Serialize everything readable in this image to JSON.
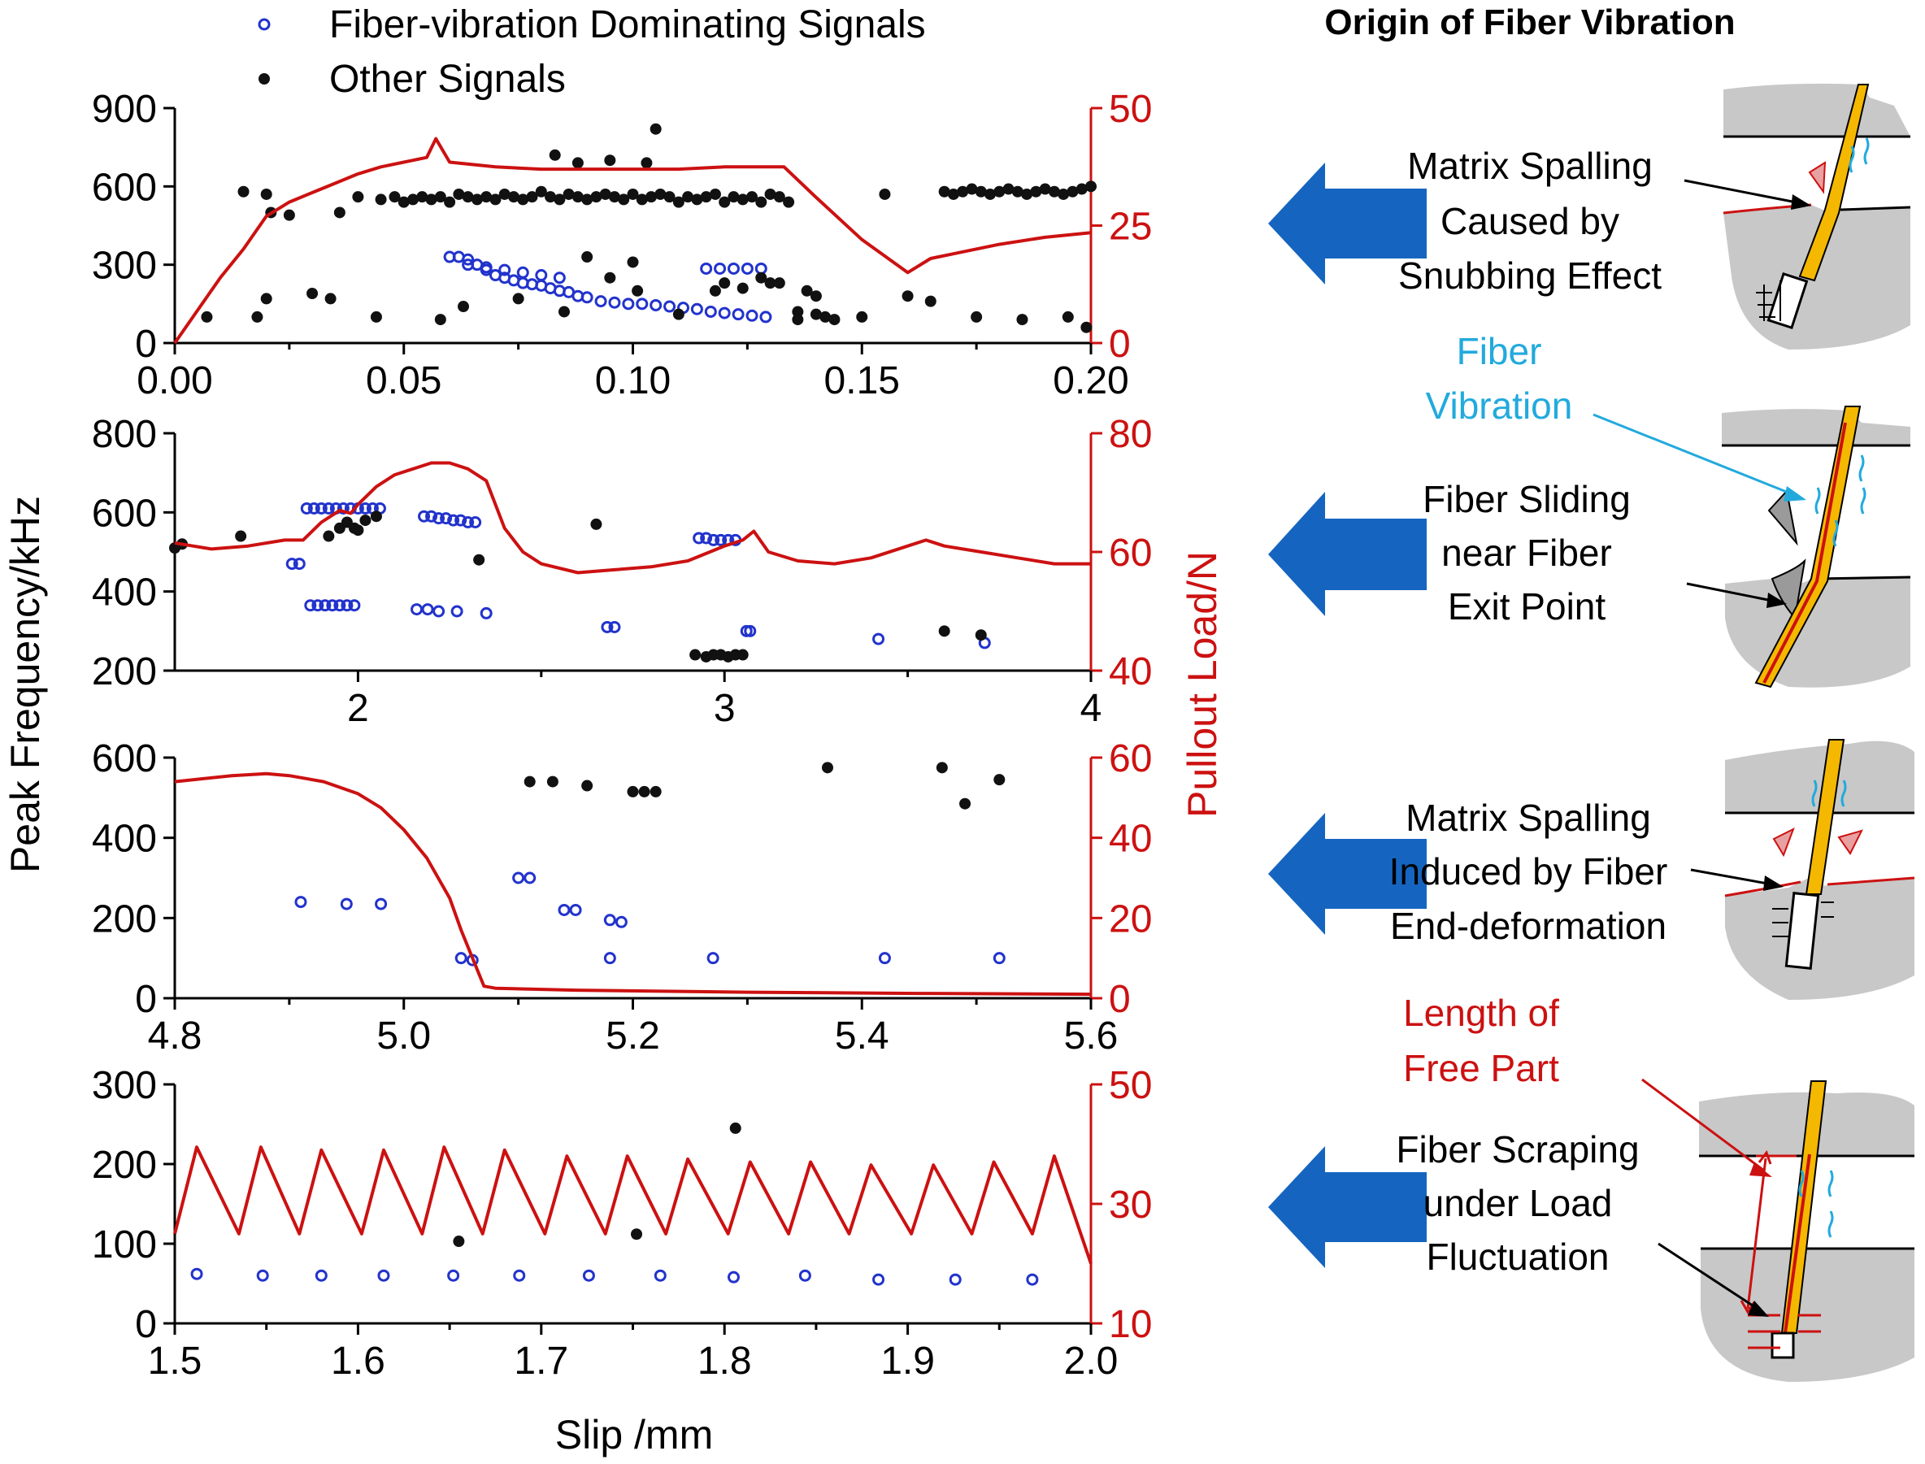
{
  "legend": {
    "fiber_vibration": "Fiber-vibration Dominating Signals",
    "other": "Other Signals"
  },
  "axes": {
    "y_left_label": "Peak Frequency/kHz",
    "y_right_label": "Pullout Load/N",
    "x_label": "Slip /mm"
  },
  "colors": {
    "fiber": "#2233cc",
    "other": "#111111",
    "load": "#cc1111",
    "arrow": "#1565c0"
  },
  "chart_data": [
    {
      "type": "scatter",
      "panel": "a",
      "xlim": [
        0,
        0.2
      ],
      "xticks": [
        "0.00",
        "0.05",
        "0.10",
        "0.15",
        "0.20"
      ],
      "xtick_values": [
        0,
        0.05,
        0.1,
        0.15,
        0.2
      ],
      "ylim": [
        0,
        900
      ],
      "yticks": [
        "0",
        "300",
        "600",
        "900"
      ],
      "ytick_values": [
        0,
        300,
        600,
        900
      ],
      "y2lim": [
        0,
        50
      ],
      "y2ticks": [
        "0",
        "25",
        "50"
      ],
      "y2tick_values": [
        0,
        25,
        50
      ],
      "series": [
        {
          "name": "Fiber-vibration Dominating Signals",
          "style": "open",
          "x": [
            0.06,
            0.062,
            0.064,
            0.066,
            0.068,
            0.07,
            0.072,
            0.074,
            0.076,
            0.078,
            0.08,
            0.082,
            0.084,
            0.086,
            0.088,
            0.09,
            0.093,
            0.096,
            0.099,
            0.102,
            0.105,
            0.108,
            0.111,
            0.114,
            0.117,
            0.12,
            0.123,
            0.126,
            0.129,
            0.116,
            0.119,
            0.122,
            0.125,
            0.128,
            0.064,
            0.068,
            0.072,
            0.076,
            0.08,
            0.084
          ],
          "y": [
            330,
            330,
            320,
            300,
            280,
            260,
            250,
            240,
            230,
            225,
            220,
            210,
            200,
            195,
            180,
            175,
            160,
            155,
            150,
            150,
            145,
            140,
            135,
            130,
            120,
            115,
            110,
            105,
            100,
            285,
            285,
            285,
            285,
            285,
            300,
            290,
            280,
            270,
            260,
            250
          ]
        },
        {
          "name": "Other Signals",
          "style": "filled",
          "x": [
            0.007,
            0.015,
            0.018,
            0.02,
            0.021,
            0.025,
            0.034,
            0.036,
            0.04,
            0.044,
            0.045,
            0.048,
            0.05,
            0.052,
            0.054,
            0.056,
            0.058,
            0.06,
            0.062,
            0.064,
            0.066,
            0.068,
            0.07,
            0.072,
            0.074,
            0.076,
            0.078,
            0.08,
            0.082,
            0.084,
            0.086,
            0.088,
            0.09,
            0.092,
            0.094,
            0.096,
            0.098,
            0.1,
            0.102,
            0.104,
            0.106,
            0.108,
            0.11,
            0.112,
            0.114,
            0.116,
            0.118,
            0.12,
            0.122,
            0.124,
            0.126,
            0.128,
            0.13,
            0.132,
            0.134,
            0.136,
            0.138,
            0.14,
            0.142,
            0.083,
            0.088,
            0.095,
            0.103,
            0.095,
            0.1,
            0.09,
            0.105,
            0.12,
            0.13,
            0.118,
            0.124,
            0.128,
            0.132,
            0.136,
            0.14,
            0.144,
            0.15,
            0.155,
            0.16,
            0.165,
            0.168,
            0.17,
            0.172,
            0.174,
            0.176,
            0.178,
            0.18,
            0.182,
            0.184,
            0.186,
            0.188,
            0.19,
            0.192,
            0.194,
            0.196,
            0.198,
            0.2,
            0.02,
            0.03,
            0.058,
            0.063,
            0.075,
            0.085,
            0.101,
            0.11,
            0.175,
            0.185,
            0.195,
            0.199
          ],
          "y": [
            100,
            580,
            100,
            570,
            500,
            490,
            170,
            500,
            560,
            100,
            550,
            560,
            540,
            550,
            560,
            550,
            560,
            540,
            570,
            560,
            550,
            560,
            550,
            570,
            560,
            550,
            560,
            580,
            560,
            550,
            570,
            560,
            550,
            560,
            570,
            560,
            550,
            570,
            550,
            560,
            570,
            560,
            540,
            560,
            550,
            560,
            570,
            540,
            560,
            550,
            560,
            540,
            570,
            560,
            540,
            120,
            200,
            180,
            100,
            720,
            690,
            700,
            690,
            250,
            310,
            330,
            820,
            230,
            230,
            200,
            210,
            250,
            230,
            90,
            110,
            90,
            100,
            570,
            180,
            160,
            580,
            570,
            580,
            590,
            580,
            570,
            580,
            590,
            580,
            570,
            580,
            590,
            580,
            570,
            580,
            590,
            600,
            170,
            190,
            90,
            140,
            170,
            120,
            200,
            110,
            100,
            90,
            100,
            60
          ]
        },
        {
          "name": "Pullout Load",
          "axis": "right",
          "style": "line",
          "x": [
            0,
            0.005,
            0.01,
            0.015,
            0.02,
            0.025,
            0.03,
            0.035,
            0.04,
            0.045,
            0.05,
            0.055,
            0.057,
            0.06,
            0.065,
            0.07,
            0.08,
            0.09,
            0.1,
            0.11,
            0.12,
            0.13,
            0.133,
            0.14,
            0.15,
            0.16,
            0.165,
            0.17,
            0.18,
            0.19,
            0.2
          ],
          "y": [
            0,
            7,
            14,
            20,
            27,
            30,
            32,
            34,
            36,
            37.5,
            38.5,
            39.5,
            43.5,
            38.5,
            38,
            37.5,
            37,
            37,
            37,
            37,
            37.5,
            37.5,
            37.5,
            31,
            22,
            15,
            18,
            19,
            21,
            22.5,
            23.5
          ]
        }
      ]
    },
    {
      "type": "scatter",
      "panel": "b",
      "xlim": [
        1.5,
        4
      ],
      "xticks": [
        "2",
        "3",
        "4"
      ],
      "xtick_values": [
        2,
        3,
        4
      ],
      "ylim": [
        200,
        800
      ],
      "yticks": [
        "200",
        "400",
        "600",
        "800"
      ],
      "ytick_values": [
        200,
        400,
        600,
        800
      ],
      "y2lim": [
        40,
        80
      ],
      "y2ticks": [
        "40",
        "60",
        "80"
      ],
      "y2tick_values": [
        40,
        60,
        80
      ],
      "series": [
        {
          "name": "Fiber-vibration Dominating Signals",
          "style": "open",
          "x": [
            1.82,
            1.84,
            1.86,
            1.88,
            1.9,
            1.92,
            1.94,
            1.96,
            1.98,
            2.0,
            2.02,
            2.04,
            2.06,
            1.87,
            1.89,
            1.91,
            1.93,
            1.95,
            1.97,
            1.99,
            2.18,
            2.2,
            2.22,
            2.24,
            2.26,
            2.28,
            2.3,
            2.32,
            2.16,
            2.19,
            2.22,
            2.27,
            2.35,
            2.68,
            2.7,
            2.93,
            2.95,
            2.97,
            2.99,
            3.01,
            3.03,
            3.06,
            3.07,
            3.42,
            3.71
          ],
          "y": [
            470,
            470,
            610,
            610,
            610,
            610,
            610,
            610,
            610,
            610,
            610,
            610,
            610,
            365,
            365,
            365,
            365,
            365,
            365,
            365,
            590,
            590,
            585,
            585,
            580,
            580,
            575,
            575,
            355,
            355,
            350,
            350,
            345,
            310,
            310,
            535,
            535,
            530,
            530,
            530,
            530,
            300,
            300,
            280,
            270
          ]
        },
        {
          "name": "Other Signals",
          "style": "filled",
          "x": [
            1.5,
            1.52,
            1.68,
            1.92,
            1.95,
            1.97,
            1.99,
            2.0,
            2.02,
            2.05,
            2.65,
            2.33,
            2.92,
            2.95,
            2.97,
            2.99,
            3.01,
            3.03,
            3.05,
            3.6,
            3.7
          ],
          "y": [
            510,
            520,
            540,
            540,
            560,
            575,
            560,
            555,
            580,
            590,
            570,
            480,
            240,
            235,
            240,
            240,
            235,
            240,
            240,
            300,
            290
          ]
        },
        {
          "name": "Pullout Load",
          "axis": "right",
          "style": "line",
          "x": [
            1.5,
            1.55,
            1.6,
            1.7,
            1.8,
            1.85,
            1.9,
            1.95,
            1.98,
            2.0,
            2.05,
            2.1,
            2.15,
            2.2,
            2.25,
            2.3,
            2.35,
            2.4,
            2.45,
            2.5,
            2.6,
            2.7,
            2.8,
            2.9,
            3.0,
            3.05,
            3.08,
            3.12,
            3.2,
            3.3,
            3.4,
            3.5,
            3.55,
            3.6,
            3.7,
            3.8,
            3.9,
            4.0
          ],
          "y": [
            61.5,
            61,
            60.5,
            61,
            62,
            62,
            65,
            67,
            66.5,
            68,
            71,
            73,
            74,
            75,
            75,
            74,
            72,
            64,
            60,
            58,
            56.5,
            57,
            57.5,
            58.5,
            61,
            62,
            63.5,
            60,
            58.5,
            58,
            59,
            61,
            62,
            61,
            60,
            59,
            58,
            58
          ]
        }
      ]
    },
    {
      "type": "scatter",
      "panel": "c",
      "xlim": [
        4.8,
        5.6
      ],
      "xticks": [
        "4.8",
        "5.0",
        "5.2",
        "5.4",
        "5.6"
      ],
      "xtick_values": [
        4.8,
        5.0,
        5.2,
        5.4,
        5.6
      ],
      "ylim": [
        0,
        600
      ],
      "yticks": [
        "0",
        "200",
        "400",
        "600"
      ],
      "ytick_values": [
        0,
        200,
        400,
        600
      ],
      "y2lim": [
        0,
        60
      ],
      "y2ticks": [
        "0",
        "20",
        "40",
        "60"
      ],
      "y2tick_values": [
        0,
        20,
        40,
        60
      ],
      "series": [
        {
          "name": "Fiber-vibration Dominating Signals",
          "style": "open",
          "x": [
            4.91,
            4.95,
            4.98,
            5.05,
            5.06,
            5.1,
            5.11,
            5.14,
            5.15,
            5.18,
            5.19,
            5.18,
            5.27,
            5.42,
            5.52
          ],
          "y": [
            240,
            235,
            235,
            100,
            95,
            300,
            300,
            220,
            220,
            195,
            190,
            100,
            100,
            100,
            100
          ]
        },
        {
          "name": "Other Signals",
          "style": "filled",
          "x": [
            5.11,
            5.13,
            5.16,
            5.2,
            5.21,
            5.22,
            5.37,
            5.47,
            5.49,
            5.52
          ],
          "y": [
            540,
            540,
            530,
            515,
            515,
            515,
            575,
            575,
            485,
            545
          ]
        },
        {
          "name": "Pullout Load",
          "axis": "right",
          "style": "line",
          "x": [
            4.8,
            4.85,
            4.88,
            4.9,
            4.93,
            4.96,
            4.98,
            5.0,
            5.02,
            5.04,
            5.05,
            5.06,
            5.07,
            5.08,
            5.15,
            5.3,
            5.45,
            5.6
          ],
          "y": [
            54,
            55.5,
            56,
            55.5,
            54,
            51,
            47.5,
            42,
            35,
            25,
            17,
            10,
            3,
            2.5,
            2,
            1.5,
            1.2,
            1
          ]
        }
      ]
    },
    {
      "type": "scatter",
      "panel": "d",
      "xlim": [
        1.5,
        2.0
      ],
      "xticks": [
        "1.5",
        "1.6",
        "1.7",
        "1.8",
        "1.9",
        "2.0"
      ],
      "xtick_values": [
        1.5,
        1.6,
        1.7,
        1.8,
        1.9,
        2.0
      ],
      "ylim": [
        0,
        300
      ],
      "yticks": [
        "0",
        "100",
        "200",
        "300"
      ],
      "ytick_values": [
        0,
        100,
        200,
        300
      ],
      "y2lim": [
        10,
        50
      ],
      "y2ticks": [
        "10",
        "30",
        "50"
      ],
      "y2tick_values": [
        10,
        30,
        50
      ],
      "series": [
        {
          "name": "Fiber-vibration Dominating Signals",
          "style": "open",
          "x": [
            1.512,
            1.548,
            1.58,
            1.614,
            1.652,
            1.688,
            1.726,
            1.765,
            1.805,
            1.844,
            1.884,
            1.926,
            1.968
          ],
          "y": [
            62,
            60,
            60,
            60,
            60,
            60,
            60,
            60,
            58,
            60,
            55,
            55,
            55
          ]
        },
        {
          "name": "Other Signals",
          "style": "filled",
          "x": [
            1.655,
            1.752,
            1.806
          ],
          "y": [
            103,
            112,
            245
          ]
        },
        {
          "name": "Pullout Load",
          "axis": "right",
          "style": "line",
          "x": [
            1.5,
            1.512,
            1.535,
            1.547,
            1.568,
            1.58,
            1.602,
            1.614,
            1.635,
            1.647,
            1.668,
            1.68,
            1.702,
            1.714,
            1.735,
            1.747,
            1.768,
            1.78,
            1.802,
            1.814,
            1.835,
            1.847,
            1.868,
            1.88,
            1.902,
            1.914,
            1.935,
            1.947,
            1.968,
            1.98,
            2.0
          ],
          "y": [
            25,
            39.5,
            25,
            39.5,
            25,
            39,
            25,
            39,
            25,
            39.5,
            25,
            39,
            25,
            38,
            25,
            38,
            25,
            37.5,
            25,
            37,
            25,
            37,
            25,
            36.5,
            25,
            36.5,
            25,
            37,
            25,
            38,
            20
          ]
        }
      ]
    }
  ],
  "schematic": {
    "title": "Origin of Fiber Vibration",
    "panel1": {
      "lines": [
        "Matrix Spalling",
        "Caused by",
        "Snubbing Effect"
      ]
    },
    "panel2": {
      "vibration_lines": [
        "Fiber",
        "Vibration"
      ],
      "lines": [
        "Fiber Sliding",
        "near  Fiber",
        "Exit Point"
      ]
    },
    "panel3": {
      "lines": [
        "Matrix Spalling",
        "Induced by Fiber",
        "End-deformation"
      ]
    },
    "panel4": {
      "free_lines": [
        "Length of",
        "Free Part"
      ],
      "lines": [
        "Fiber Scraping",
        "under Load",
        "Fluctuation"
      ]
    }
  }
}
